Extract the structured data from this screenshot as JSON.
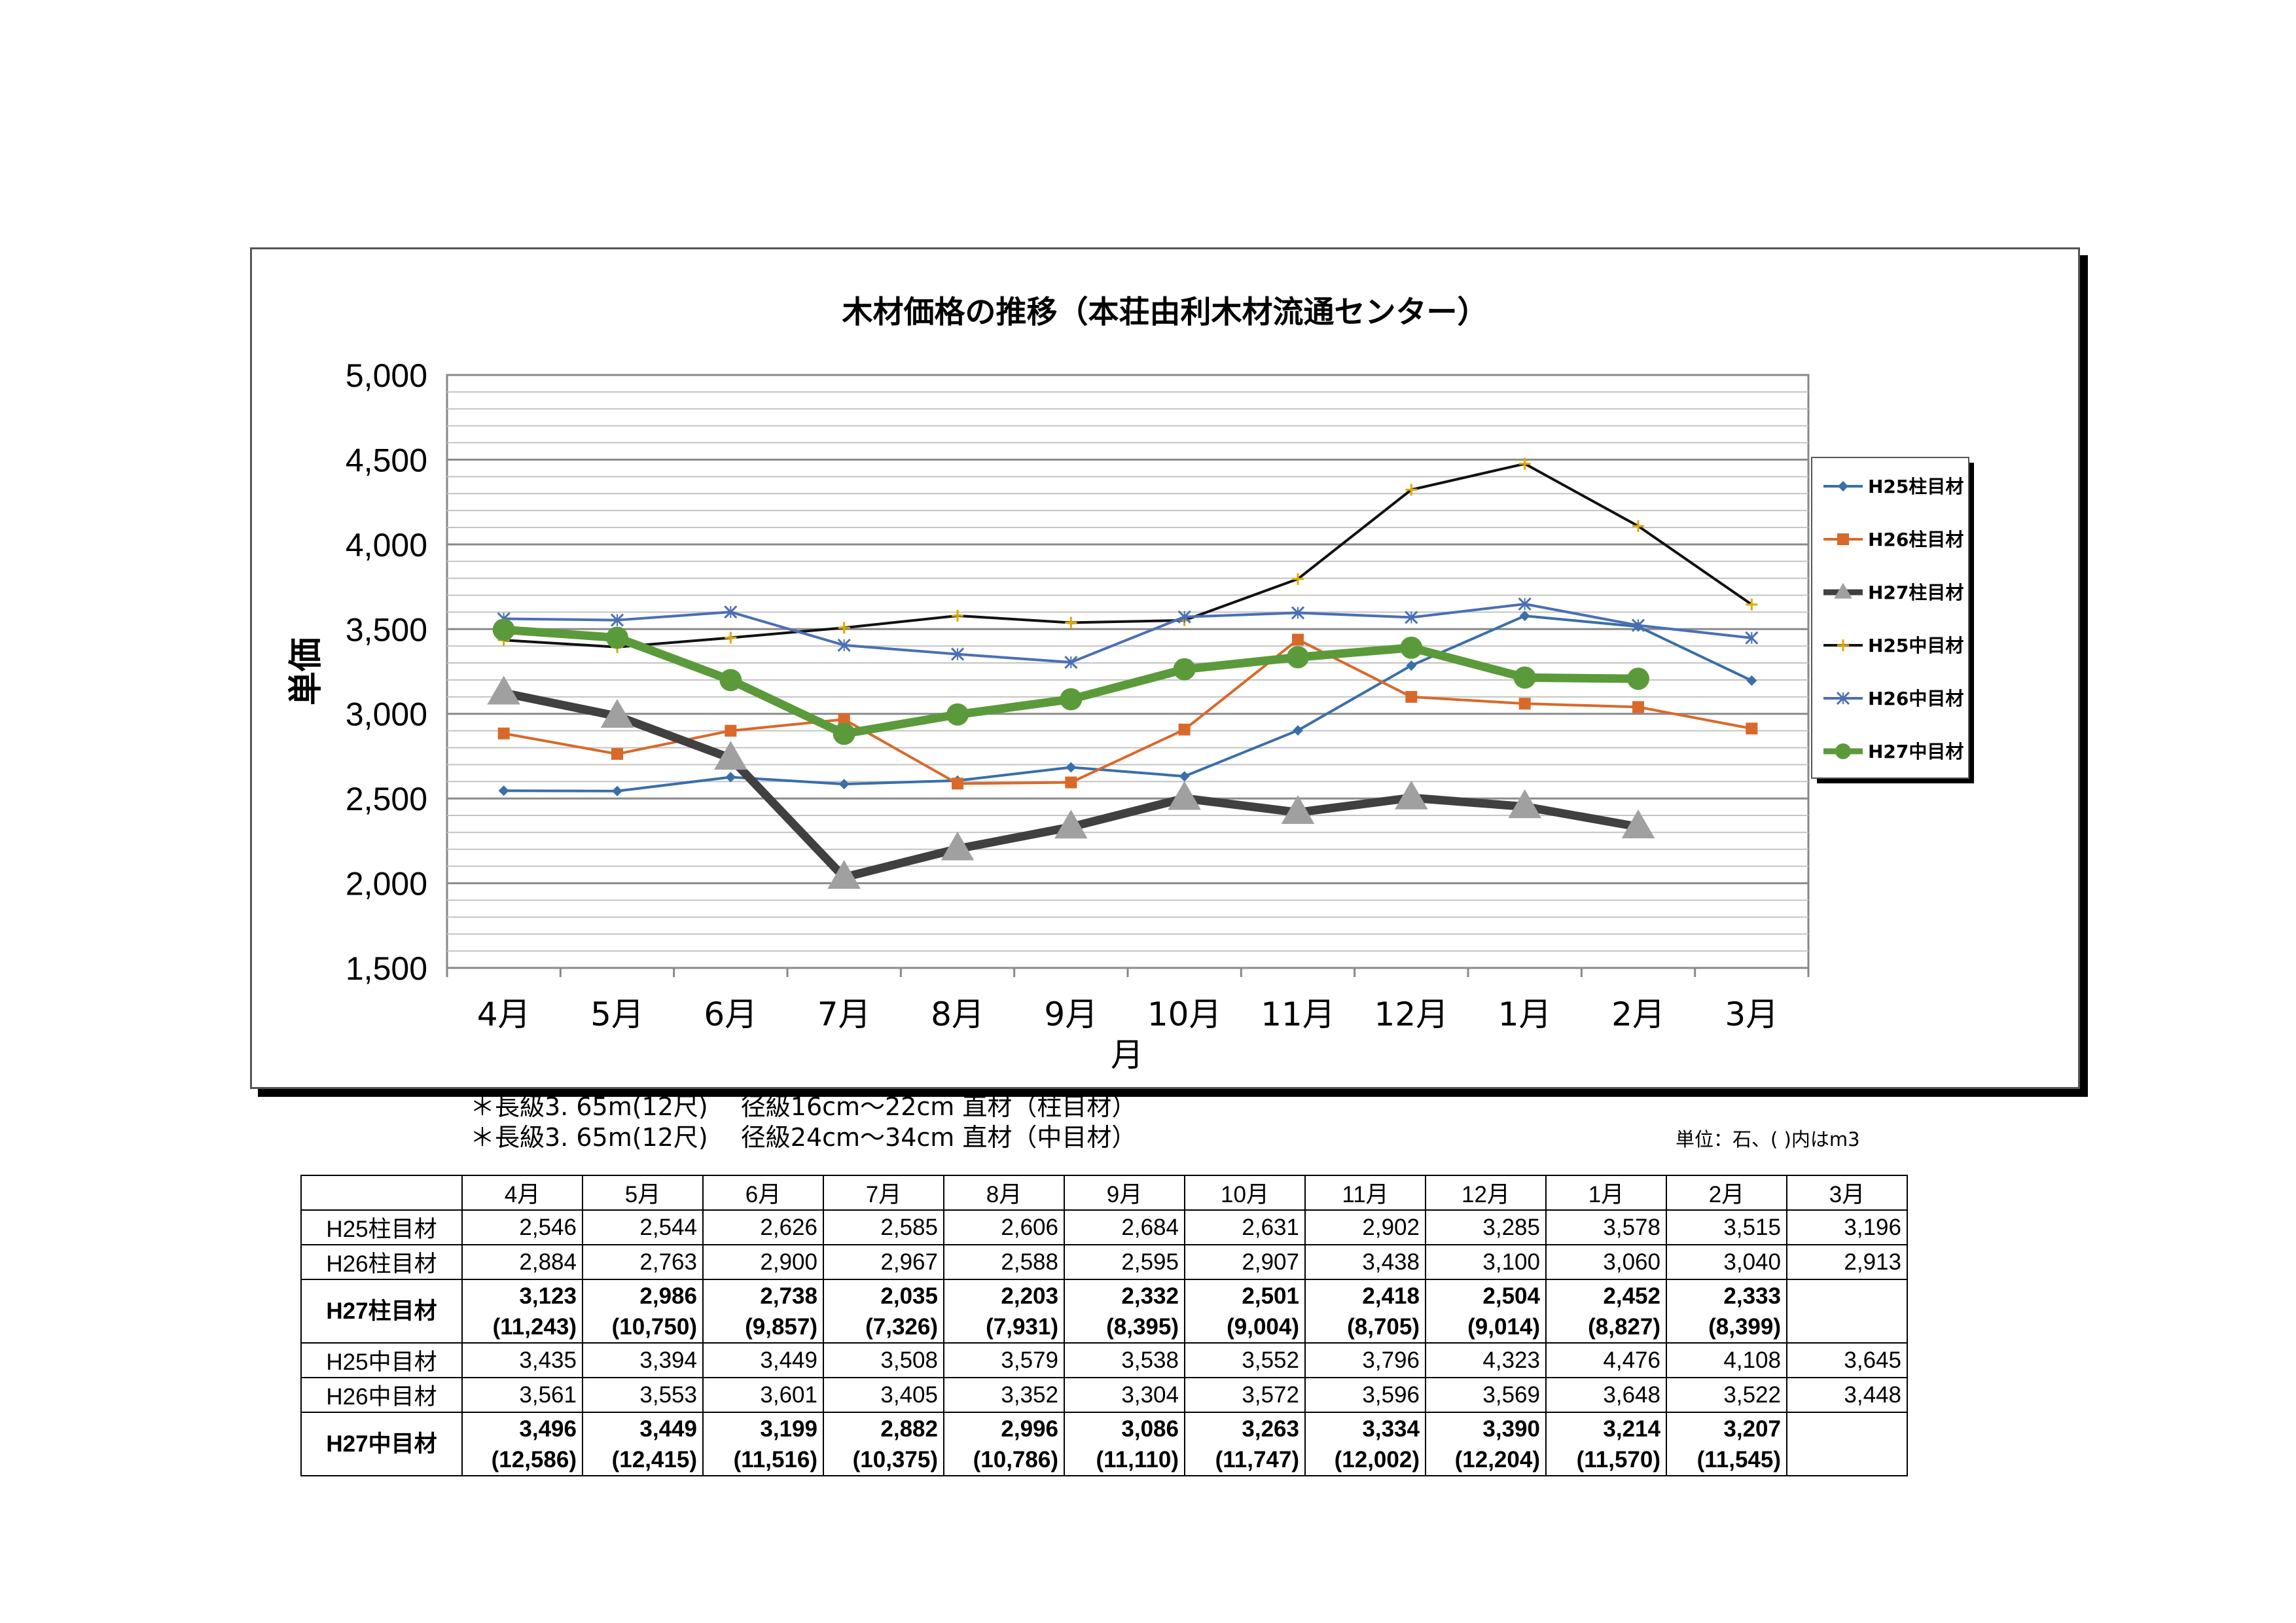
{
  "chart_data": {
    "type": "line",
    "title": "木材価格の推移（本荘由利木材流通センター）",
    "xlabel": "月",
    "ylabel": "単価",
    "ylim": [
      1500,
      5000
    ],
    "yticks": [
      "1,500",
      "2,000",
      "2,500",
      "3,000",
      "3,500",
      "4,000",
      "4,500",
      "5,000"
    ],
    "categories": [
      "4月",
      "5月",
      "6月",
      "7月",
      "8月",
      "9月",
      "10月",
      "11月",
      "12月",
      "1月",
      "2月",
      "3月"
    ],
    "grid": true,
    "legend_position": "right",
    "series": [
      {
        "name": "H25柱目材",
        "color": "#3a6fa8",
        "marker": "diamond",
        "values": [
          2546,
          2544,
          2626,
          2585,
          2606,
          2684,
          2631,
          2902,
          3285,
          3578,
          3515,
          3196
        ]
      },
      {
        "name": "H26柱目材",
        "color": "#d9692a",
        "marker": "square",
        "values": [
          2884,
          2763,
          2900,
          2967,
          2588,
          2595,
          2907,
          3438,
          3100,
          3060,
          3040,
          2913
        ]
      },
      {
        "name": "H27柱目材",
        "color": "#404040",
        "marker": "triangle",
        "values": [
          3123,
          2986,
          2738,
          2035,
          2203,
          2332,
          2501,
          2418,
          2504,
          2452,
          2333,
          null
        ]
      },
      {
        "name": "H25中目材",
        "color": "#111111",
        "marker": "star",
        "values": [
          3435,
          3394,
          3449,
          3508,
          3579,
          3538,
          3552,
          3796,
          4323,
          4476,
          4108,
          3645
        ]
      },
      {
        "name": "H26中目材",
        "color": "#4a6fb5",
        "marker": "x",
        "values": [
          3561,
          3553,
          3601,
          3405,
          3352,
          3304,
          3572,
          3596,
          3569,
          3648,
          3522,
          3448
        ]
      },
      {
        "name": "H27中目材",
        "color": "#5b9a3a",
        "marker": "circle",
        "values": [
          3496,
          3449,
          3199,
          2882,
          2996,
          3086,
          3263,
          3334,
          3390,
          3214,
          3207,
          null
        ]
      }
    ]
  },
  "notes": {
    "line1": "＊長級3. 65m(12尺)　 径級16cm～22cm  直材（柱目材）",
    "line2": "＊長級3. 65m(12尺)　 径級24cm～34cm  直材（中目材）",
    "unit": "単位：石、(  )内はm3"
  },
  "table": {
    "header": [
      "",
      "4月",
      "5月",
      "6月",
      "7月",
      "8月",
      "9月",
      "10月",
      "11月",
      "12月",
      "1月",
      "2月",
      "3月"
    ],
    "rows": [
      {
        "label": "H25柱目材",
        "bold": false,
        "cells": [
          "2,546",
          "2,544",
          "2,626",
          "2,585",
          "2,606",
          "2,684",
          "2,631",
          "2,902",
          "3,285",
          "3,578",
          "3,515",
          "3,196"
        ]
      },
      {
        "label": "H26柱目材",
        "bold": false,
        "cells": [
          "2,884",
          "2,763",
          "2,900",
          "2,967",
          "2,588",
          "2,595",
          "2,907",
          "3,438",
          "3,100",
          "3,060",
          "3,040",
          "2,913"
        ]
      },
      {
        "label": "H27柱目材",
        "bold": true,
        "cells": [
          "3,123",
          "2,986",
          "2,738",
          "2,035",
          "2,203",
          "2,332",
          "2,501",
          "2,418",
          "2,504",
          "2,452",
          "2,333",
          ""
        ],
        "sub": [
          "(11,243)",
          "(10,750)",
          "(9,857)",
          "(7,326)",
          "(7,931)",
          "(8,395)",
          "(9,004)",
          "(8,705)",
          "(9,014)",
          "(8,827)",
          "(8,399)",
          ""
        ]
      },
      {
        "label": "H25中目材",
        "bold": false,
        "cells": [
          "3,435",
          "3,394",
          "3,449",
          "3,508",
          "3,579",
          "3,538",
          "3,552",
          "3,796",
          "4,323",
          "4,476",
          "4,108",
          "3,645"
        ]
      },
      {
        "label": "H26中目材",
        "bold": false,
        "cells": [
          "3,561",
          "3,553",
          "3,601",
          "3,405",
          "3,352",
          "3,304",
          "3,572",
          "3,596",
          "3,569",
          "3,648",
          "3,522",
          "3,448"
        ]
      },
      {
        "label": "H27中目材",
        "bold": true,
        "cells": [
          "3,496",
          "3,449",
          "3,199",
          "2,882",
          "2,996",
          "3,086",
          "3,263",
          "3,334",
          "3,390",
          "3,214",
          "3,207",
          ""
        ],
        "sub": [
          "(12,586)",
          "(12,415)",
          "(11,516)",
          "(10,375)",
          "(10,786)",
          "(11,110)",
          "(11,747)",
          "(12,002)",
          "(12,204)",
          "(11,570)",
          "(11,545)",
          ""
        ]
      }
    ]
  }
}
